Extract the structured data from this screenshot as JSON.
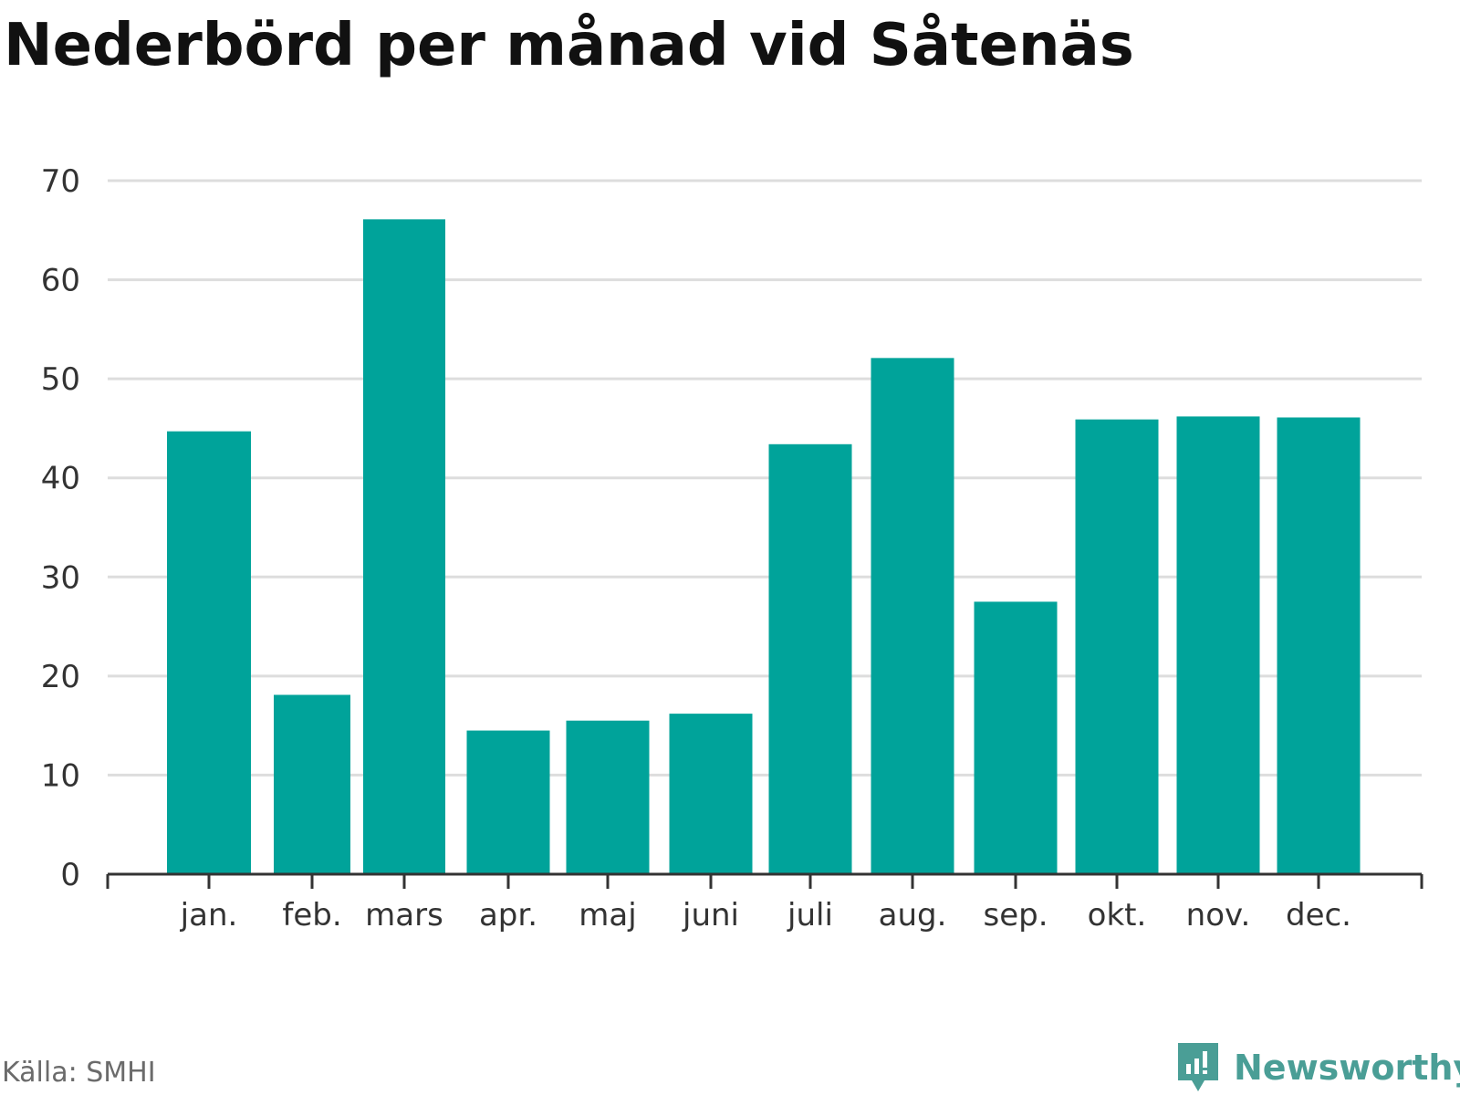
{
  "title": "Nederbörd per månad vid Såtenäs",
  "source": "Källa: SMHI",
  "brand": {
    "name": "Newsworthy",
    "icon": "newsworthy-logo-icon",
    "color": "#4a9e96"
  },
  "colors": {
    "bar": "#00a39a",
    "grid": "#dddddd",
    "axis": "#333333",
    "tick_text": "#333333"
  },
  "chart_data": {
    "type": "bar",
    "title": "Nederbörd per månad vid Såtenäs",
    "xlabel": "",
    "ylabel": "",
    "categories": [
      "jan.",
      "feb.",
      "mars",
      "apr.",
      "maj",
      "juni",
      "juli",
      "aug.",
      "sep.",
      "okt.",
      "nov.",
      "dec."
    ],
    "values": [
      44.7,
      18.1,
      66.1,
      14.5,
      15.5,
      16.2,
      43.4,
      52.1,
      27.5,
      45.9,
      46.2,
      46.1
    ],
    "ylim": [
      0,
      70
    ],
    "yticks": [
      "0",
      "10",
      "20",
      "30",
      "40",
      "50",
      "60",
      "70"
    ],
    "grid": true,
    "legend": "none"
  }
}
